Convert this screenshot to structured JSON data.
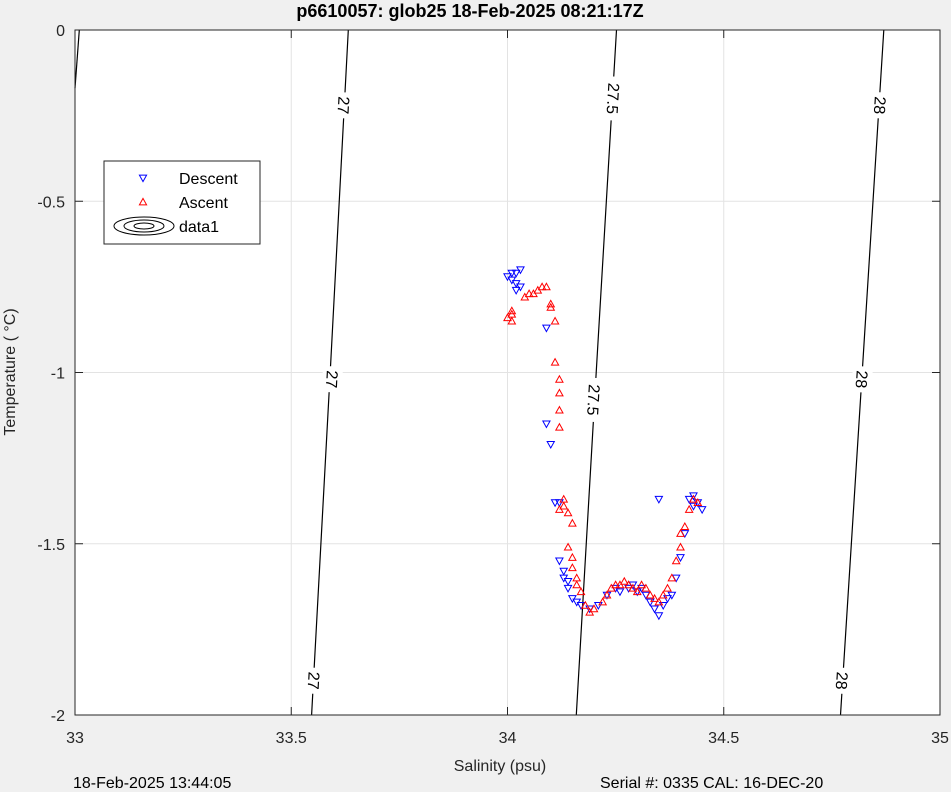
{
  "chart_data": {
    "type": "scatter",
    "title": "p6610057: glob25 18-Feb-2025 08:21:17Z",
    "xlabel": "Salinity (psu)",
    "ylabel": "Temperature (  °C)",
    "xlim": [
      33,
      35
    ],
    "ylim": [
      -2,
      0
    ],
    "xticks": [
      "33",
      "33.5",
      "34",
      "34.5",
      "35"
    ],
    "yticks": [
      "0",
      "-0.5",
      "-1",
      "-1.5",
      "-2"
    ],
    "grid": true,
    "legend_position": "upper-left",
    "series": [
      {
        "name": "Descent",
        "marker": "triangle-down",
        "color": "#0000ff",
        "points": [
          [
            34.0,
            -0.72
          ],
          [
            34.01,
            -0.71
          ],
          [
            34.02,
            -0.71
          ],
          [
            34.03,
            -0.7
          ],
          [
            34.01,
            -0.73
          ],
          [
            34.02,
            -0.74
          ],
          [
            34.02,
            -0.76
          ],
          [
            34.03,
            -0.75
          ],
          [
            34.09,
            -0.87
          ],
          [
            34.09,
            -1.15
          ],
          [
            34.1,
            -1.21
          ],
          [
            34.11,
            -1.38
          ],
          [
            34.12,
            -1.38
          ],
          [
            34.12,
            -1.55
          ],
          [
            34.13,
            -1.58
          ],
          [
            34.13,
            -1.6
          ],
          [
            34.14,
            -1.61
          ],
          [
            34.14,
            -1.63
          ],
          [
            34.15,
            -1.66
          ],
          [
            34.16,
            -1.67
          ],
          [
            34.17,
            -1.68
          ],
          [
            34.19,
            -1.69
          ],
          [
            34.21,
            -1.68
          ],
          [
            34.23,
            -1.65
          ],
          [
            34.25,
            -1.63
          ],
          [
            34.26,
            -1.64
          ],
          [
            34.28,
            -1.63
          ],
          [
            34.29,
            -1.62
          ],
          [
            34.3,
            -1.64
          ],
          [
            34.31,
            -1.63
          ],
          [
            34.32,
            -1.65
          ],
          [
            34.33,
            -1.67
          ],
          [
            34.34,
            -1.69
          ],
          [
            34.35,
            -1.71
          ],
          [
            34.36,
            -1.68
          ],
          [
            34.37,
            -1.66
          ],
          [
            34.38,
            -1.65
          ],
          [
            34.39,
            -1.6
          ],
          [
            34.4,
            -1.54
          ],
          [
            34.41,
            -1.47
          ],
          [
            34.35,
            -1.37
          ],
          [
            34.42,
            -1.37
          ],
          [
            34.43,
            -1.36
          ],
          [
            34.43,
            -1.39
          ],
          [
            34.44,
            -1.38
          ],
          [
            34.45,
            -1.4
          ]
        ]
      },
      {
        "name": "Ascent",
        "marker": "triangle-up",
        "color": "#ff0000",
        "points": [
          [
            34.0,
            -0.84
          ],
          [
            34.01,
            -0.85
          ],
          [
            34.01,
            -0.83
          ],
          [
            34.01,
            -0.82
          ],
          [
            34.04,
            -0.78
          ],
          [
            34.05,
            -0.77
          ],
          [
            34.06,
            -0.77
          ],
          [
            34.07,
            -0.76
          ],
          [
            34.08,
            -0.75
          ],
          [
            34.09,
            -0.75
          ],
          [
            34.1,
            -0.8
          ],
          [
            34.1,
            -0.81
          ],
          [
            34.11,
            -0.85
          ],
          [
            34.11,
            -0.97
          ],
          [
            34.12,
            -1.02
          ],
          [
            34.12,
            -1.06
          ],
          [
            34.12,
            -1.11
          ],
          [
            34.12,
            -1.16
          ],
          [
            34.13,
            -1.37
          ],
          [
            34.12,
            -1.4
          ],
          [
            34.13,
            -1.39
          ],
          [
            34.14,
            -1.41
          ],
          [
            34.15,
            -1.44
          ],
          [
            34.14,
            -1.51
          ],
          [
            34.15,
            -1.54
          ],
          [
            34.15,
            -1.57
          ],
          [
            34.16,
            -1.6
          ],
          [
            34.16,
            -1.62
          ],
          [
            34.17,
            -1.64
          ],
          [
            34.18,
            -1.68
          ],
          [
            34.19,
            -1.7
          ],
          [
            34.2,
            -1.69
          ],
          [
            34.22,
            -1.67
          ],
          [
            34.23,
            -1.65
          ],
          [
            34.24,
            -1.63
          ],
          [
            34.25,
            -1.62
          ],
          [
            34.26,
            -1.62
          ],
          [
            34.27,
            -1.61
          ],
          [
            34.28,
            -1.62
          ],
          [
            34.29,
            -1.63
          ],
          [
            34.3,
            -1.64
          ],
          [
            34.31,
            -1.62
          ],
          [
            34.32,
            -1.63
          ],
          [
            34.33,
            -1.65
          ],
          [
            34.34,
            -1.66
          ],
          [
            34.35,
            -1.67
          ],
          [
            34.36,
            -1.65
          ],
          [
            34.37,
            -1.63
          ],
          [
            34.38,
            -1.6
          ],
          [
            34.39,
            -1.55
          ],
          [
            34.4,
            -1.51
          ],
          [
            34.4,
            -1.47
          ],
          [
            34.41,
            -1.45
          ],
          [
            34.42,
            -1.4
          ],
          [
            34.43,
            -1.37
          ],
          [
            34.44,
            -1.38
          ]
        ]
      },
      {
        "name": "data1",
        "marker": "contour",
        "color": "#000000",
        "points": []
      }
    ],
    "contours": [
      {
        "level": "27",
        "color": "#000000",
        "points": [
          [
            33.547,
            -2
          ],
          [
            33.59,
            -1
          ],
          [
            33.632,
            0
          ]
        ],
        "labels": [
          {
            "text": "27",
            "at": [
              33.553,
              -1.9
            ]
          },
          {
            "text": "27",
            "at": [
              33.595,
              -1.02
            ]
          },
          {
            "text": "27",
            "at": [
              33.622,
              -0.22
            ]
          }
        ]
      },
      {
        "level": "27.5",
        "color": "#000000",
        "points": [
          [
            34.159,
            -2
          ],
          [
            34.205,
            -1
          ],
          [
            34.252,
            0
          ]
        ],
        "labels": [
          {
            "text": "27.5",
            "at": [
              34.2,
              -1.08
            ]
          },
          {
            "text": "27.5",
            "at": [
              34.245,
              -0.2
            ]
          }
        ]
      },
      {
        "level": "28",
        "color": "#000000",
        "points": [
          [
            34.77,
            -2
          ],
          [
            34.82,
            -1
          ],
          [
            34.87,
            0
          ]
        ],
        "labels": [
          {
            "text": "28",
            "at": [
              34.774,
              -1.9
            ]
          },
          {
            "text": "28",
            "at": [
              34.82,
              -1.02
            ]
          },
          {
            "text": "28",
            "at": [
              34.862,
              -0.22
            ]
          }
        ]
      },
      {
        "level": "",
        "color": "#000000",
        "points": [
          [
            33.0,
            -0.17
          ],
          [
            33.01,
            0
          ]
        ],
        "labels": []
      }
    ],
    "footer_left": "18-Feb-2025 13:44:05",
    "footer_right": "Serial #: 0335  CAL: 16-DEC-20"
  }
}
